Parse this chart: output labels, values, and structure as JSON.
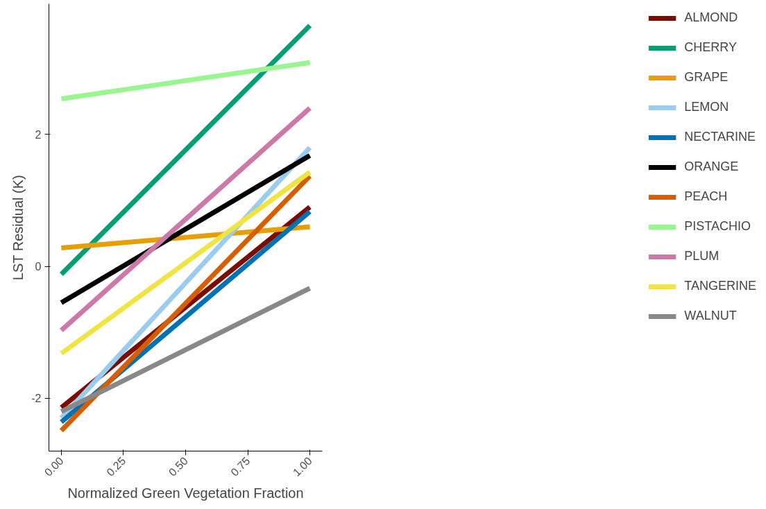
{
  "chart_data": {
    "type": "line",
    "xlabel": "Normalized Green Vegetation Fraction",
    "ylabel": "LST Residual (K)",
    "x": [
      0,
      1
    ],
    "series": [
      {
        "name": "ALMOND",
        "color": "#7a0c02",
        "values": [
          -2.14,
          0.9
        ]
      },
      {
        "name": "CHERRY",
        "color": "#009e73",
        "values": [
          -0.12,
          3.65
        ]
      },
      {
        "name": "GRAPE",
        "color": "#e69f00",
        "values": [
          0.28,
          0.6
        ]
      },
      {
        "name": "LEMON",
        "color": "#99ccee",
        "values": [
          -2.3,
          1.8
        ]
      },
      {
        "name": "NECTARINE",
        "color": "#0072b2",
        "values": [
          -2.36,
          0.83
        ]
      },
      {
        "name": "ORANGE",
        "color": "#000000",
        "values": [
          -0.55,
          1.68
        ]
      },
      {
        "name": "PEACH",
        "color": "#d55e00",
        "values": [
          -2.49,
          1.37
        ]
      },
      {
        "name": "PISTACHIO",
        "color": "#99f590",
        "values": [
          2.54,
          3.09
        ]
      },
      {
        "name": "PLUM",
        "color": "#cc79a7",
        "values": [
          -0.97,
          2.4
        ]
      },
      {
        "name": "TANGERINE",
        "color": "#f0e442",
        "values": [
          -1.32,
          1.43
        ]
      },
      {
        "name": "WALNUT",
        "color": "#888888",
        "values": [
          -2.2,
          -0.33
        ]
      }
    ],
    "xlim": [
      -0.05,
      1.05
    ],
    "ylim": [
      -2.8,
      3.98
    ],
    "xticks": [
      {
        "value": 0,
        "label": "0.00"
      },
      {
        "value": 0.25,
        "label": "0.25"
      },
      {
        "value": 0.5,
        "label": "0.50"
      },
      {
        "value": 0.75,
        "label": "0.75"
      },
      {
        "value": 1,
        "label": "1.00"
      }
    ],
    "yticks": [
      -2,
      0,
      2
    ],
    "grid": false,
    "legend": "right",
    "line_style": "solid"
  }
}
